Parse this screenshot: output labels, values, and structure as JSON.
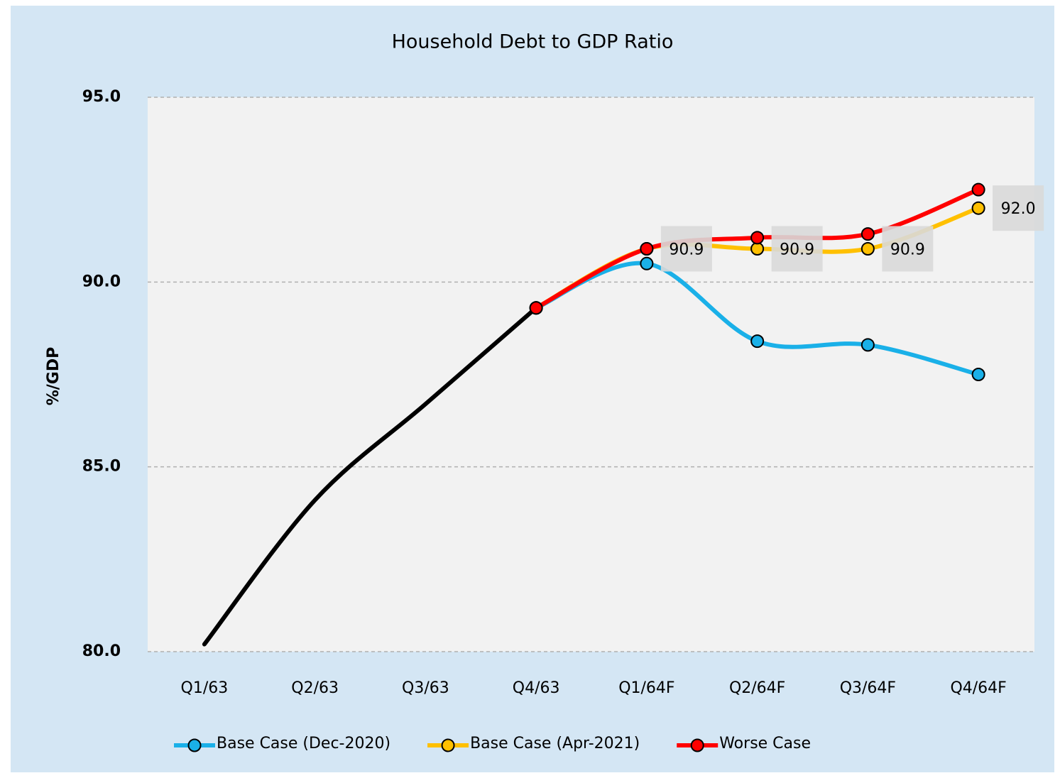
{
  "chart_data": {
    "type": "line",
    "title": "Household Debt to GDP Ratio",
    "y_label": "%/GDP",
    "categories": [
      "Q1/63",
      "Q2/63",
      "Q3/63",
      "Q4/63",
      "Q1/64F",
      "Q2/64F",
      "Q3/64F",
      "Q4/64F"
    ],
    "series": [
      {
        "color": "#000000",
        "values": [
          80.2,
          84.1,
          86.7,
          89.3,
          null,
          null,
          null,
          null
        ]
      },
      {
        "name": "Base Case (Dec-2020)",
        "color": "#1ab0e8",
        "values": [
          null,
          null,
          null,
          89.3,
          90.5,
          88.4,
          88.3,
          87.5
        ]
      },
      {
        "name": "Base Case (Apr-2021)",
        "color": "#ffc000",
        "values": [
          null,
          null,
          null,
          89.3,
          90.9,
          90.9,
          90.9,
          92.0
        ],
        "value_labels": [
          null,
          null,
          null,
          null,
          "90.9",
          "90.9",
          "90.9",
          "92.0"
        ]
      },
      {
        "name": "Worse Case",
        "color": "#ff0000",
        "values": [
          null,
          null,
          null,
          89.3,
          90.9,
          91.2,
          91.3,
          92.5
        ]
      }
    ],
    "ylim": [
      80,
      95
    ],
    "yticks": [
      {
        "value": 80,
        "label": "80.0"
      },
      {
        "value": 85,
        "label": "85.0"
      },
      {
        "value": 90,
        "label": "90.0"
      },
      {
        "value": 95,
        "label": "95.0"
      }
    ],
    "grid": true,
    "legend": "bottom"
  }
}
